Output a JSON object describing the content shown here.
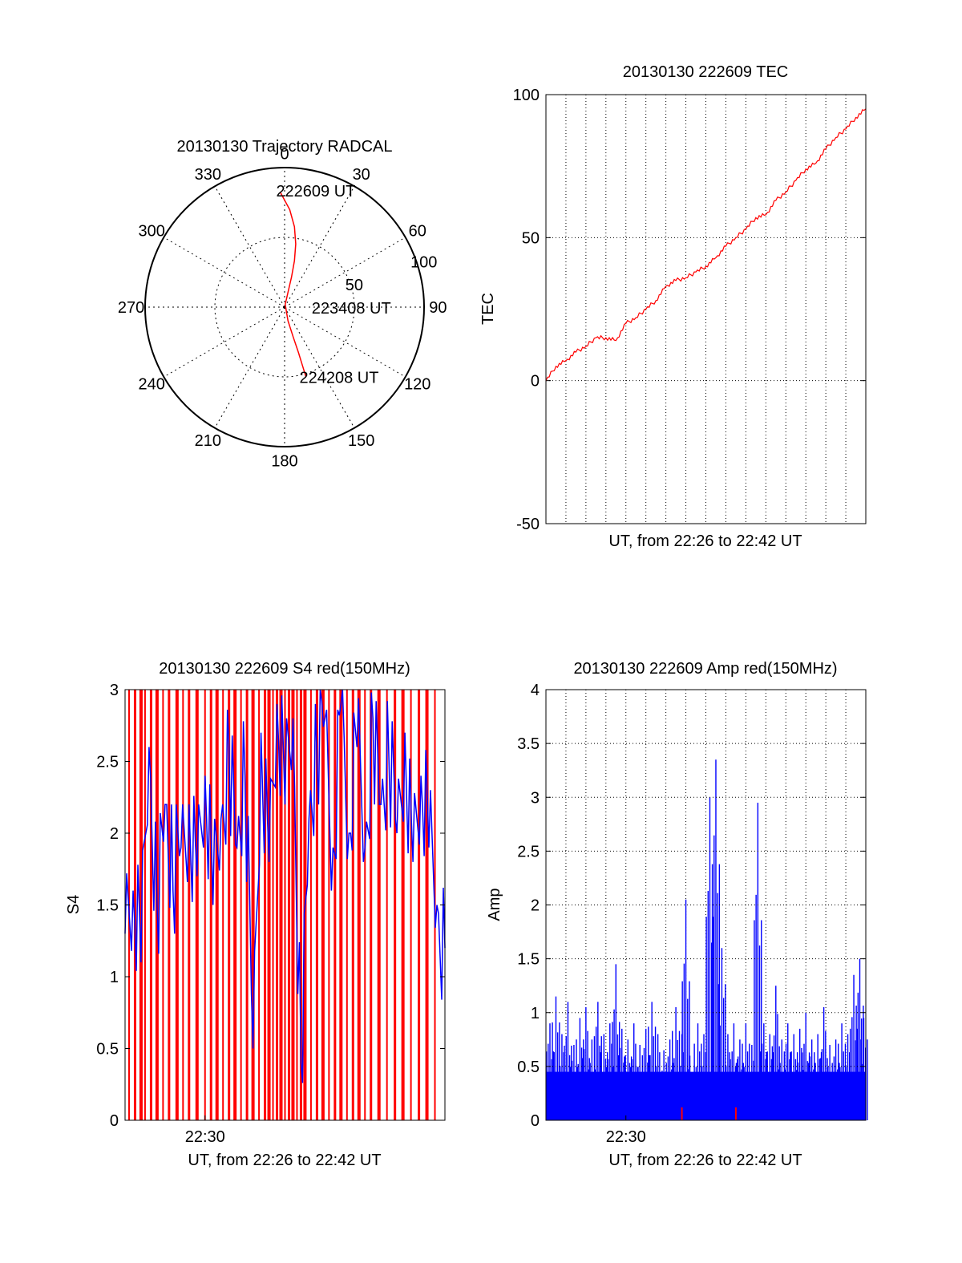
{
  "figure": {
    "background": "#ffffff"
  },
  "chart_data": [
    {
      "id": "trajectory",
      "type": "polar",
      "title": "20130130 Trajectory RADCAL",
      "angle_labels": [
        "0",
        "30",
        "60",
        "90",
        "120",
        "150",
        "180",
        "210",
        "240",
        "270",
        "300",
        "330"
      ],
      "radius_labels": [
        "50",
        "100"
      ],
      "rmax": 100,
      "grid": true,
      "series": [
        {
          "color": "#ff0000",
          "points": [
            [
              -2,
              82
            ],
            [
              3,
              70
            ],
            [
              7,
              58
            ],
            [
              10,
              46
            ],
            [
              12,
              34
            ],
            [
              13,
              22
            ],
            [
              13,
              10
            ],
            [
              13,
              2
            ],
            [
              166,
              10
            ],
            [
              164,
              22
            ],
            [
              163,
              34
            ],
            [
              163,
              44
            ],
            [
              163,
              52
            ]
          ]
        }
      ],
      "annotations": [
        {
          "text": "222609 UT",
          "az": -1,
          "r": 84
        },
        {
          "text": "223408 UT",
          "az": 90,
          "r": 24
        },
        {
          "text": "224208 UT",
          "az": 163,
          "r": 52
        }
      ]
    },
    {
      "id": "tec",
      "type": "line",
      "title": "20130130 222609 TEC",
      "xlabel": "UT, from 22:26 to 22:42 UT",
      "ylabel": "TEC",
      "ylim": [
        -50,
        100
      ],
      "yticks": [
        -50,
        0,
        50,
        100
      ],
      "xlim": [
        0,
        16
      ],
      "grid": true,
      "series": [
        {
          "color": "#ff0000",
          "x": [
            0,
            0.5,
            1,
            1.5,
            2,
            2.5,
            3,
            3.5,
            4,
            4.5,
            5,
            5.5,
            6,
            6.5,
            7,
            7.5,
            8,
            8.5,
            9,
            9.5,
            10,
            10.5,
            11,
            11.5,
            12,
            12.5,
            13,
            13.5,
            14,
            14.5,
            15,
            15.5,
            16
          ],
          "y": [
            0,
            5,
            7,
            10,
            12,
            15,
            15,
            14,
            20,
            22,
            25,
            28,
            33,
            35,
            36,
            38,
            40,
            43,
            47,
            50,
            53,
            57,
            58,
            63,
            66,
            70,
            74,
            76,
            81,
            85,
            88,
            92,
            95
          ]
        }
      ]
    },
    {
      "id": "s4",
      "type": "line",
      "title": "20130130 222609 S4 red(150MHz)",
      "xlabel": "UT, from 22:26 to 22:42 UT",
      "ylabel": "S4",
      "ylim": [
        0,
        3
      ],
      "yticks": [
        0,
        0.5,
        1,
        1.5,
        2,
        2.5,
        3
      ],
      "yticklabels": [
        "0",
        "0.5",
        "1",
        "1.5",
        "2",
        "2.5",
        "3"
      ],
      "xlim": [
        0,
        16
      ],
      "xticks": [
        {
          "x": 4,
          "label": "22:30"
        }
      ],
      "grid": false,
      "series": [
        {
          "color": "#ff0000",
          "style": "spikes",
          "value": 3,
          "x": [
            0.2,
            0.5,
            0.8,
            1.0,
            1.3,
            1.6,
            1.9,
            2.2,
            2.6,
            2.9,
            3.2,
            3.6,
            4.0,
            4.3,
            4.6,
            4.9,
            5.2,
            5.5,
            5.8,
            6.1,
            6.4,
            6.7,
            7.0,
            7.2,
            7.4,
            7.6,
            7.8,
            8.0,
            8.2,
            8.4,
            8.6,
            8.8,
            9.0,
            9.3,
            9.6,
            9.9,
            10.2,
            10.5,
            10.8,
            11.1,
            11.4,
            11.7,
            12.0,
            12.3,
            12.7,
            13.1,
            13.5,
            13.9,
            14.3,
            14.7,
            15.1,
            15.5
          ]
        },
        {
          "color": "#0000ff",
          "x": [
            0,
            0.4,
            0.8,
            1.2,
            1.6,
            2.0,
            2.4,
            2.8,
            3.2,
            3.6,
            4.0,
            4.4,
            4.8,
            5.2,
            5.6,
            6.0,
            6.4,
            6.8,
            7.2,
            7.6,
            8.0,
            8.4,
            8.8,
            9.2,
            9.6,
            10.0,
            10.4,
            10.8,
            11.2,
            11.6,
            12.0,
            12.4,
            12.8,
            13.2,
            13.6,
            14.0,
            14.4,
            14.8,
            15.2,
            15.6,
            16.0
          ],
          "y": [
            1.3,
            1.6,
            1.1,
            2.6,
            1.5,
            2.2,
            1.6,
            1.9,
            2.2,
            1.7,
            2.4,
            1.5,
            2.1,
            2.6,
            1.9,
            2.4,
            0.5,
            2.7,
            1.8,
            2.9,
            2.2,
            2.8,
            0.4,
            2.1,
            2.5,
            2.8,
            1.9,
            2.9,
            2.0,
            2.6,
            1.9,
            2.8,
            2.2,
            2.5,
            2.0,
            2.7,
            1.8,
            2.4,
            1.9,
            1.5,
            1.2
          ]
        }
      ]
    },
    {
      "id": "amp",
      "type": "bar",
      "title": "20130130 222609 Amp red(150MHz)",
      "xlabel": "UT, from 22:26 to 22:42 UT",
      "ylabel": "Amp",
      "ylim": [
        0,
        4
      ],
      "yticks": [
        0,
        0.5,
        1,
        1.5,
        2,
        2.5,
        3,
        3.5,
        4
      ],
      "yticklabels": [
        "0",
        "0.5",
        "1",
        "1.5",
        "2",
        "2.5",
        "3",
        "3.5",
        "4"
      ],
      "xlim": [
        0,
        16
      ],
      "xticks": [
        {
          "x": 4,
          "label": "22:30"
        }
      ],
      "grid": true,
      "series": [
        {
          "color": "#0000ff",
          "x": [
            0.2,
            0.5,
            0.8,
            1.1,
            1.4,
            1.7,
            2.0,
            2.3,
            2.6,
            2.9,
            3.2,
            3.5,
            3.8,
            4.1,
            4.4,
            4.7,
            5.0,
            5.3,
            5.6,
            5.9,
            6.2,
            6.5,
            6.8,
            7.0,
            7.2,
            7.6,
            7.9,
            8.2,
            8.5,
            8.8,
            9.1,
            9.4,
            9.7,
            10.0,
            10.3,
            10.6,
            10.9,
            11.2,
            11.5,
            11.8,
            12.1,
            12.4,
            12.7,
            13.0,
            13.3,
            13.6,
            13.9,
            14.2,
            14.5,
            14.8,
            15.1,
            15.4,
            15.7,
            15.9
          ],
          "values": [
            0.9,
            1.15,
            0.8,
            1.1,
            0.7,
            0.95,
            1.05,
            0.75,
            1.1,
            0.8,
            0.9,
            1.45,
            0.85,
            0.75,
            0.9,
            0.7,
            0.85,
            1.1,
            0.8,
            0.65,
            0.75,
            1.05,
            0.8,
            2.05,
            0.6,
            0.9,
            0.8,
            3.0,
            3.35,
            1.6,
            0.8,
            0.9,
            0.75,
            0.9,
            0.7,
            2.95,
            0.9,
            0.8,
            1.25,
            0.75,
            0.9,
            0.8,
            0.85,
            1.0,
            0.75,
            0.8,
            1.05,
            0.7,
            0.75,
            0.9,
            0.8,
            1.35,
            1.5,
            0.95
          ],
          "floor": 0.45
        },
        {
          "color": "#ff0000",
          "x": [
            6.8,
            9.5
          ],
          "values": [
            0.12,
            0.12
          ]
        }
      ]
    }
  ]
}
